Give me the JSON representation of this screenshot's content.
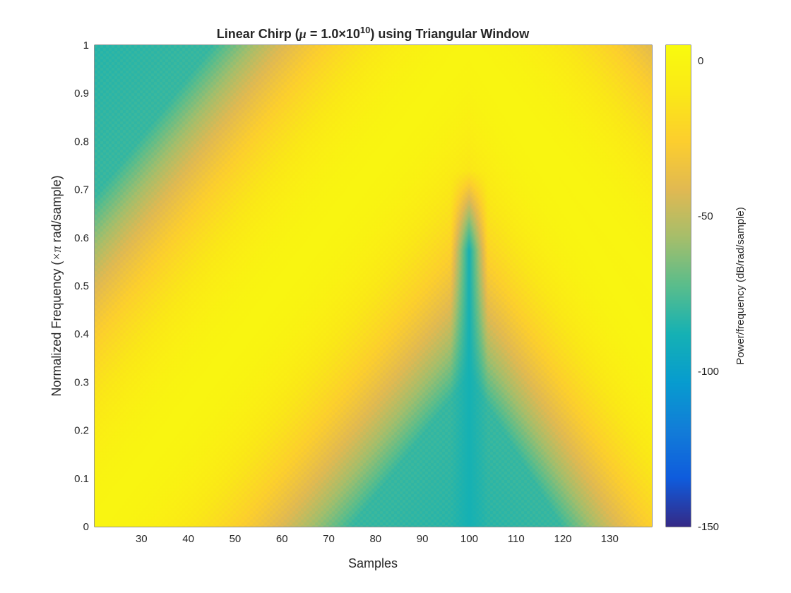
{
  "chart_data": {
    "type": "heatmap",
    "title_prefix": "Linear Chirp (",
    "title_mu": "μ",
    "title_middle": " = 1.0×10",
    "title_exp": "10",
    "title_suffix": ") using Triangular Window",
    "xlabel": "Samples",
    "ylabel_prefix": "Normalized Frequency  (",
    "ylabel_symbol": "×π",
    "ylabel_suffix": " rad/sample)",
    "xlim": [
      20,
      139
    ],
    "ylim": [
      0,
      1
    ],
    "x_ticks": [
      30,
      40,
      50,
      60,
      70,
      80,
      90,
      100,
      110,
      120,
      130
    ],
    "x_tick_labels": [
      "30",
      "40",
      "50",
      "60",
      "70",
      "80",
      "90",
      "100",
      "110",
      "120",
      "130"
    ],
    "y_ticks": [
      0,
      0.1,
      0.2,
      0.3,
      0.4,
      0.5,
      0.6,
      0.7,
      0.8,
      0.9,
      1
    ],
    "y_tick_labels": [
      "0",
      "0.1",
      "0.2",
      "0.3",
      "0.4",
      "0.5",
      "0.6",
      "0.7",
      "0.8",
      "0.9",
      "1"
    ],
    "colorbar": {
      "label": "Power/frequency (dB/rad/sample)",
      "range": [
        -150,
        5
      ],
      "ticks": [
        0,
        -50,
        -100,
        -150
      ],
      "tick_labels": [
        "0",
        "-50",
        "-100",
        "-150"
      ],
      "colormap": "parula"
    },
    "ridges": [
      {
        "name": "",
        "description": "",
        "x": [
          20,
          100
        ],
        "y": [
          0.0,
          1.0
        ]
      },
      {
        "name": "",
        "description": "",
        "x": [
          100,
          139
        ],
        "y": [
          1.0,
          0.38
        ]
      }
    ],
    "peak_db": 0,
    "floor_db": -80,
    "notch_x": 100,
    "notch_db": -88
  }
}
